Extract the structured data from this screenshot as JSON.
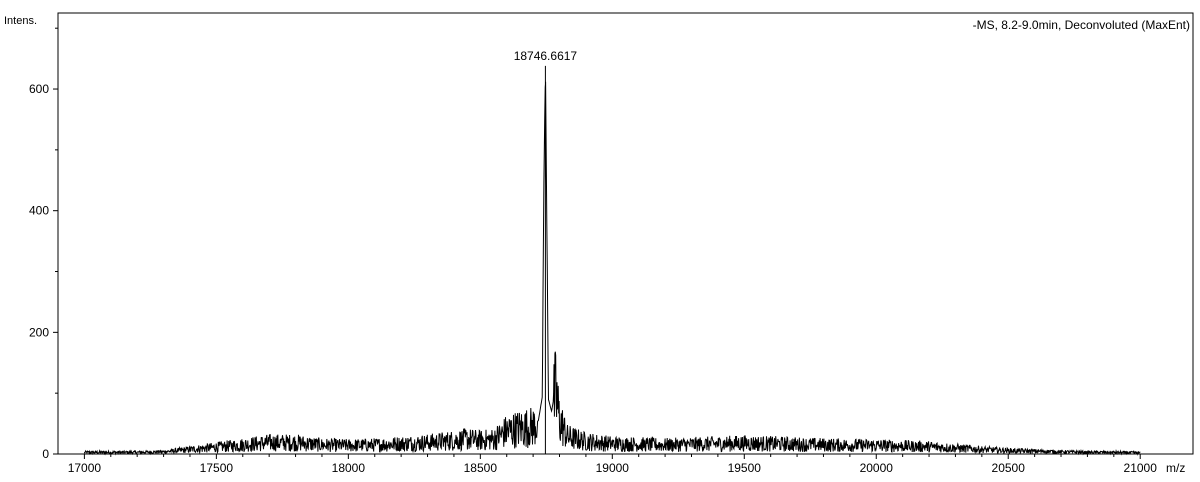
{
  "chart_data": {
    "type": "line",
    "title": "-MS, 8.2-9.0min, Deconvoluted (MaxEnt)",
    "ylabel": "Intens.",
    "xlabel": "m/z",
    "xlim": [
      16900,
      21200
    ],
    "ylim": [
      0,
      725
    ],
    "x_ticks": [
      17000,
      17500,
      18000,
      18500,
      19000,
      19500,
      20000,
      20500,
      21000
    ],
    "x_tick_labels": [
      "17000",
      "17500",
      "18000",
      "18500",
      "19000",
      "19500",
      "20000",
      "20500",
      "21000"
    ],
    "y_ticks": [
      0,
      200,
      400,
      600
    ],
    "y_tick_labels": [
      "0",
      "200",
      "400",
      "600"
    ],
    "grid": false,
    "peak_annotation": {
      "x": 18746.6617,
      "y": 638,
      "label": "18746.6617"
    },
    "series": [
      {
        "color": "#000000",
        "x": [
          17000,
          17100,
          17200,
          17300,
          17400,
          17500,
          17600,
          17700,
          17800,
          17900,
          18000,
          18100,
          18200,
          18300,
          18400,
          18450,
          18500,
          18550,
          18600,
          18650,
          18700,
          18720,
          18735,
          18740,
          18746.6617,
          18752,
          18758,
          18770,
          18785,
          18800,
          18830,
          18900,
          19000,
          19200,
          19400,
          19500,
          19600,
          19800,
          20000,
          20200,
          20400,
          20500,
          20600,
          20700,
          20800,
          20900,
          21000
        ],
        "y": [
          3,
          3,
          3,
          4,
          8,
          12,
          16,
          20,
          20,
          16,
          15,
          16,
          18,
          20,
          24,
          26,
          24,
          26,
          40,
          45,
          48,
          55,
          95,
          420,
          638,
          380,
          90,
          70,
          110,
          60,
          30,
          22,
          18,
          16,
          18,
          19,
          18,
          16,
          15,
          13,
          8,
          6,
          5,
          4,
          3,
          3,
          2
        ]
      }
    ]
  }
}
